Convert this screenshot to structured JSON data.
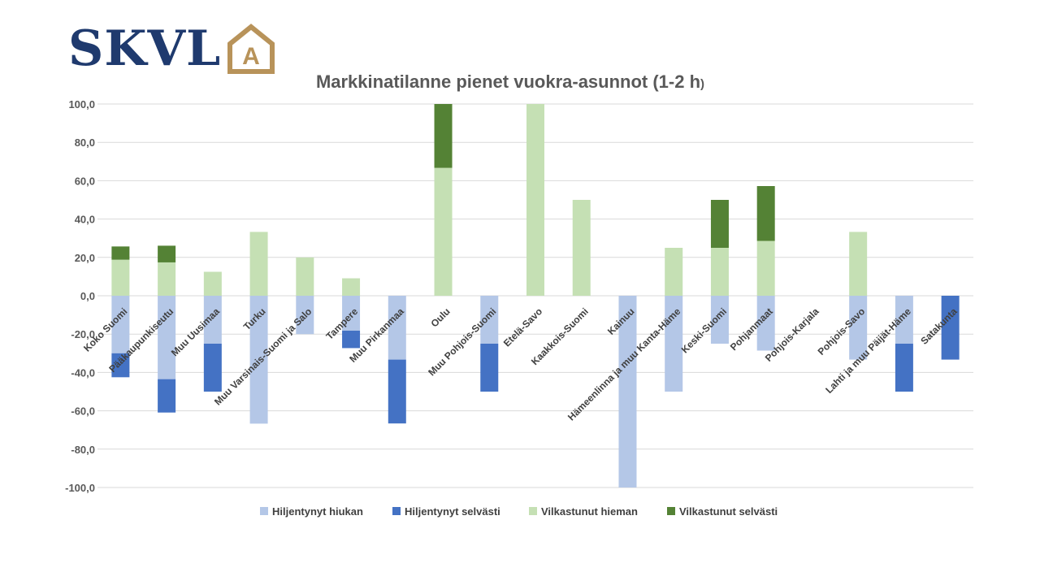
{
  "logo": {
    "text": "SKVL",
    "mark_letter": "A",
    "text_color": "#1f3a6e",
    "mark_color": "#b8935a"
  },
  "chart_data": {
    "type": "bar",
    "stacked": true,
    "title": "Markkinatilanne pienet vuokra-asunnot (1-2 h",
    "title_suffix": ")",
    "categories": [
      "Koko Suomi",
      "Pääkaupunkiseutu",
      "Muu Uusimaa",
      "Turku",
      "Muu Varsinais-Suomi ja Salo",
      "Tampere",
      "Muu Pirkanmaa",
      "Oulu",
      "Muu Pohjois-Suomi",
      "Etelä-Savo",
      "Kaakkois-Suomi",
      "Kainuu",
      "Hämeenlinna ja muu Kanta-Häme",
      "Keski-Suomi",
      "Pohjanmaat",
      "Pohjois-Karjala",
      "Pohjois-Savo",
      "Lahti ja muu Päijät-Häme",
      "Satakunta"
    ],
    "series": [
      {
        "name": "Hiljentynyt hiukan",
        "color": "#b4c7e7",
        "values": [
          -30,
          -43.5,
          -25,
          -66.7,
          -20,
          -18.2,
          -33.3,
          0,
          -25,
          0,
          0,
          -100,
          -50,
          -25,
          -28.6,
          0,
          -33.3,
          -25,
          0
        ]
      },
      {
        "name": "Hiljentynyt selvästi",
        "color": "#4472c4",
        "values": [
          -12.5,
          -17.4,
          -25,
          0,
          0,
          -9.1,
          -33.3,
          0,
          -25,
          0,
          0,
          0,
          0,
          0,
          0,
          0,
          0,
          -25,
          -33.3
        ]
      },
      {
        "name": "Vilkastunut hieman",
        "color": "#c5e0b4",
        "values": [
          18.8,
          17.4,
          12.5,
          33.3,
          20,
          9.1,
          0,
          66.7,
          0,
          100,
          50,
          0,
          25,
          25,
          28.6,
          0,
          33.3,
          0,
          0
        ]
      },
      {
        "name": "Vilkastunut selvästi",
        "color": "#548235",
        "values": [
          6.9,
          8.7,
          0,
          0,
          0,
          0,
          0,
          33.3,
          0,
          0,
          0,
          0,
          0,
          25,
          28.6,
          0,
          0,
          0,
          0
        ]
      }
    ],
    "y_ticks": [
      "100,0",
      "80,0",
      "60,0",
      "40,0",
      "20,0",
      "0,0",
      "-20,0",
      "-40,0",
      "-60,0",
      "-80,0",
      "-100,0"
    ],
    "ylim": [
      -100,
      100
    ],
    "grid": true,
    "legend_position": "bottom"
  }
}
